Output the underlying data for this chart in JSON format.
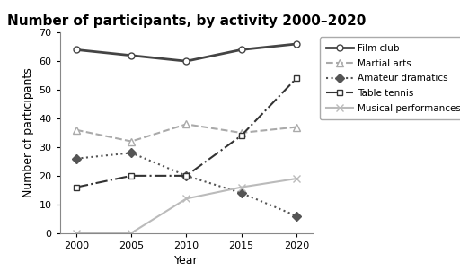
{
  "title": "Number of participants, by activity 2000–2020",
  "xlabel": "Year",
  "ylabel": "Number of participants",
  "years": [
    2000,
    2005,
    2010,
    2015,
    2020
  ],
  "series": {
    "Film club": [
      64,
      62,
      60,
      64,
      66
    ],
    "Martial arts": [
      36,
      32,
      38,
      35,
      37
    ],
    "Amateur dramatics": [
      26,
      28,
      20,
      14,
      6
    ],
    "Table tennis": [
      16,
      20,
      20,
      34,
      54
    ],
    "Musical performances": [
      0,
      0,
      12,
      16,
      19
    ]
  },
  "styles": {
    "Film club": {
      "color": "#444444",
      "linestyle": "-",
      "marker": "o",
      "markersize": 5,
      "markerfacecolor": "white",
      "markeredgecolor": "#444444",
      "linewidth": 2.0
    },
    "Martial arts": {
      "color": "#aaaaaa",
      "linestyle": "--",
      "marker": "^",
      "markersize": 6,
      "markerfacecolor": "white",
      "markeredgecolor": "#aaaaaa",
      "linewidth": 1.5
    },
    "Amateur dramatics": {
      "color": "#555555",
      "linestyle": ":",
      "marker": "D",
      "markersize": 5,
      "markerfacecolor": "#555555",
      "markeredgecolor": "#555555",
      "linewidth": 1.5
    },
    "Table tennis": {
      "color": "#333333",
      "linestyle": "-.",
      "marker": "s",
      "markersize": 5,
      "markerfacecolor": "white",
      "markeredgecolor": "#333333",
      "linewidth": 1.5
    },
    "Musical performances": {
      "color": "#bbbbbb",
      "linestyle": "-",
      "marker": "x",
      "markersize": 6,
      "markerfacecolor": "#bbbbbb",
      "markeredgecolor": "#bbbbbb",
      "linewidth": 1.5
    }
  },
  "ylim": [
    0,
    70
  ],
  "yticks": [
    0,
    10,
    20,
    30,
    40,
    50,
    60,
    70
  ],
  "background_color": "#ffffff",
  "title_fontsize": 11,
  "axis_label_fontsize": 9,
  "tick_fontsize": 8,
  "legend_fontsize": 7.5
}
